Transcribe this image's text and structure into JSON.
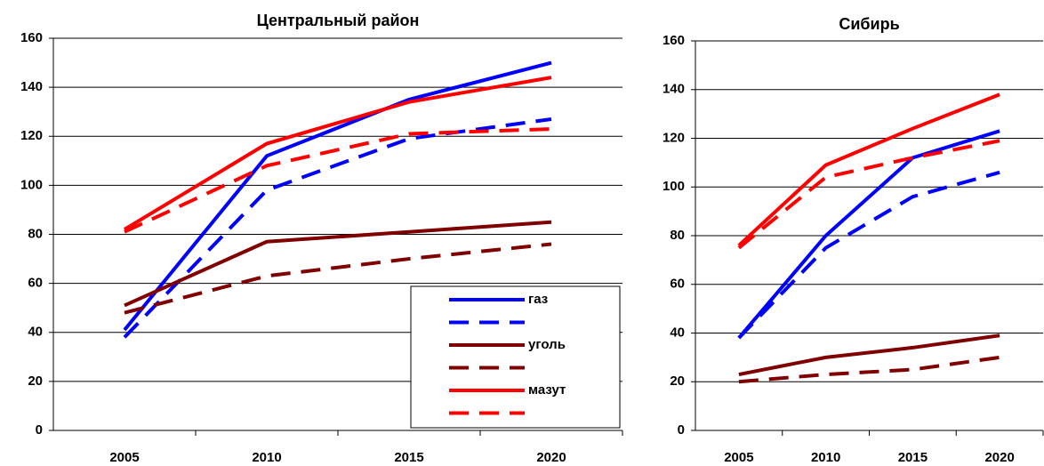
{
  "chart_data": [
    {
      "type": "line",
      "title": "Центральный район",
      "categories": [
        "2005",
        "2010",
        "2015",
        "2020"
      ],
      "ylim": [
        0,
        160
      ],
      "yticks": [
        0,
        20,
        40,
        60,
        80,
        100,
        120,
        140,
        160
      ],
      "grid": true,
      "legend": "lower right",
      "series": [
        {
          "name": "газ",
          "color": "#0000ff",
          "style": "solid",
          "values": [
            41,
            112,
            135,
            150
          ]
        },
        {
          "color": "#0000ff",
          "style": "dashed",
          "values": [
            38,
            98,
            119,
            127
          ]
        },
        {
          "name": "уголь",
          "color": "#800000",
          "style": "solid",
          "values": [
            51,
            77,
            81,
            85
          ]
        },
        {
          "color": "#800000",
          "style": "dashed",
          "values": [
            48,
            63,
            70,
            76
          ]
        },
        {
          "name": "мазут",
          "color": "#ff0000",
          "style": "solid",
          "values": [
            82,
            117,
            134,
            144
          ]
        },
        {
          "color": "#ff0000",
          "style": "dashed",
          "values": [
            81,
            108,
            121,
            123
          ]
        }
      ]
    },
    {
      "type": "line",
      "title": "Сибирь",
      "categories": [
        "2005",
        "2010",
        "2015",
        "2020"
      ],
      "ylim": [
        0,
        160
      ],
      "yticks": [
        0,
        20,
        40,
        60,
        80,
        100,
        120,
        140,
        160
      ],
      "grid": true,
      "series": [
        {
          "color": "#0000ff",
          "style": "solid",
          "values": [
            38,
            80,
            112,
            123
          ]
        },
        {
          "color": "#0000ff",
          "style": "dashed",
          "values": [
            38,
            75,
            96,
            106
          ]
        },
        {
          "color": "#800000",
          "style": "solid",
          "values": [
            23,
            30,
            34,
            39
          ]
        },
        {
          "color": "#800000",
          "style": "dashed",
          "values": [
            20,
            23,
            25,
            30
          ]
        },
        {
          "color": "#ff0000",
          "style": "solid",
          "values": [
            76,
            109,
            124,
            138
          ]
        },
        {
          "color": "#ff0000",
          "style": "dashed",
          "values": [
            75,
            104,
            112,
            119
          ]
        }
      ]
    }
  ]
}
